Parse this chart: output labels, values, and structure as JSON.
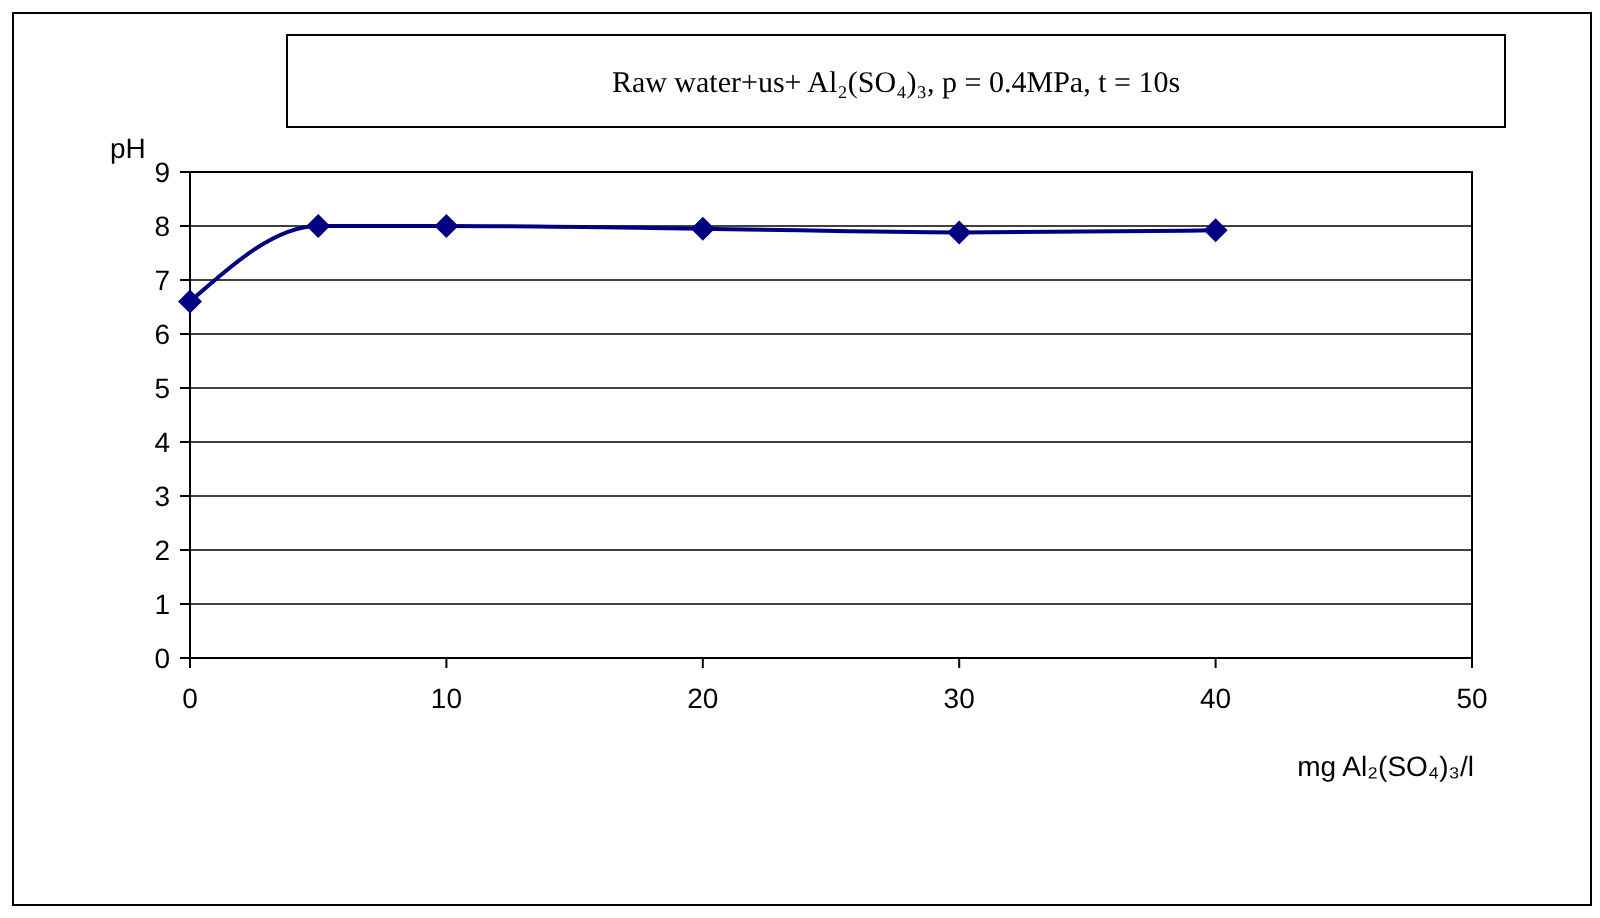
{
  "chart_data": {
    "type": "line",
    "title": "Raw water+us+ Al₂(SO₄)₃, p = 0.4MPa, t = 10s",
    "xlabel": "mg Al₂(SO₄)₃/l",
    "ylabel": "pH",
    "x": [
      0,
      5,
      10,
      20,
      30,
      40
    ],
    "series": [
      {
        "color": "#000080",
        "values": [
          6.6,
          8.0,
          8.0,
          7.95,
          7.88,
          7.92
        ]
      }
    ],
    "xlim": [
      0,
      50
    ],
    "xticks": [
      0,
      10,
      20,
      30,
      40,
      50
    ],
    "ylim": [
      0,
      9
    ],
    "yticks": [
      0,
      1,
      2,
      3,
      4,
      5,
      6,
      7,
      8,
      9
    ],
    "grid": "y",
    "marker": "diamond",
    "line_style": "solid"
  }
}
